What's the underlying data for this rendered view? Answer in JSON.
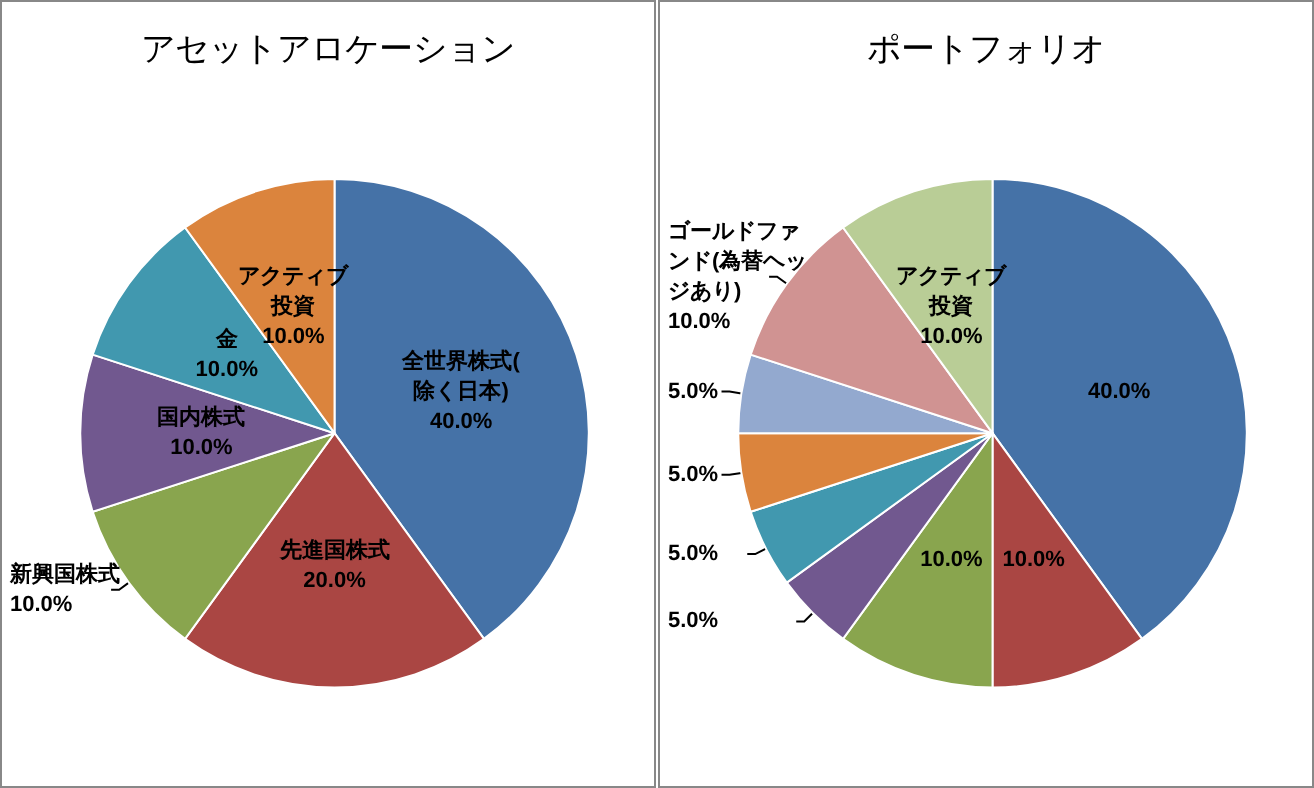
{
  "chart_data": [
    {
      "type": "pie",
      "title": "アセットアロケーション",
      "categories": [
        "全世界株式(除く日本)",
        "先進国株式",
        "新興国株式",
        "国内株式",
        "金",
        "アクティブ投資"
      ],
      "values": [
        40,
        20,
        10,
        10,
        10,
        10
      ],
      "colors": [
        "#4572a7",
        "#aa4643",
        "#89a54e",
        "#71588f",
        "#4198af",
        "#db843d"
      ],
      "value_labels": [
        "40.0%",
        "20.0%",
        "10.0%",
        "10.0%",
        "10.0%",
        "10.0%"
      ],
      "legend": false
    },
    {
      "type": "pie",
      "title": "ポートフォリオ",
      "categories": [
        null,
        null,
        null,
        null,
        null,
        null,
        null,
        "ゴールドファンド(為替ヘッジあり)",
        "アクティブ投資"
      ],
      "values": [
        40,
        10,
        10,
        5,
        5,
        5,
        5,
        10,
        10
      ],
      "colors": [
        "#4572a7",
        "#aa4643",
        "#89a54e",
        "#71588f",
        "#4198af",
        "#db843d",
        "#93a9cf",
        "#d09392",
        "#b9cd96"
      ],
      "value_labels": [
        "40.0%",
        "10.0%",
        "10.0%",
        "5.0%",
        "5.0%",
        "5.0%",
        "5.0%",
        "10.0%",
        "10.0%"
      ],
      "legend": false
    }
  ]
}
